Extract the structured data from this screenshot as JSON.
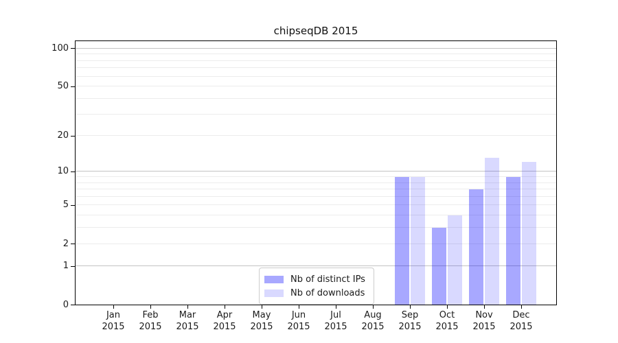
{
  "chart_data": {
    "type": "bar",
    "title": "chipseqDB 2015",
    "categories": [
      "Jan",
      "Feb",
      "Mar",
      "Apr",
      "May",
      "Jun",
      "Jul",
      "Aug",
      "Sep",
      "Oct",
      "Nov",
      "Dec"
    ],
    "category_year": "2015",
    "series": [
      {
        "name": "Nb of distinct IPs",
        "color": "rgba(0,0,255,0.34)",
        "values": [
          0,
          0,
          0,
          0,
          0,
          0,
          0,
          0,
          9,
          3,
          7,
          9
        ]
      },
      {
        "name": "Nb of downloads",
        "color": "rgba(0,0,255,0.15)",
        "values": [
          0,
          0,
          0,
          0,
          0,
          0,
          0,
          0,
          9,
          4,
          13,
          12
        ]
      }
    ],
    "yscale": "log1p",
    "ylim": [
      0,
      114
    ],
    "yticks": [
      0,
      1,
      2,
      5,
      10,
      20,
      50,
      100
    ],
    "major_gridlines": [
      1,
      10,
      100
    ],
    "minor_gridlines": [
      2,
      3,
      4,
      5,
      6,
      7,
      8,
      9,
      20,
      30,
      40,
      50,
      60,
      70,
      80,
      90
    ],
    "grid": true,
    "legend_position": "lower center-right"
  },
  "colors": {
    "major_grid": "#c3c3c3",
    "minor_grid": "#ececec",
    "spine": "#000000",
    "text": "#1a1a1a",
    "legend_border": "#cccccc"
  }
}
